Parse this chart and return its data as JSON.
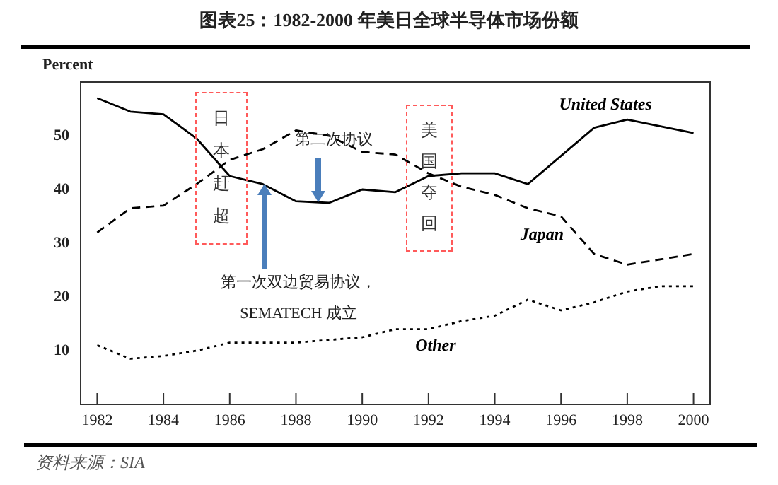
{
  "chart_data": {
    "type": "line",
    "title": "图表25：1982-2000 年美日全球半导体市场份额",
    "ylabel": "Percent",
    "series": [
      {
        "name": "United States",
        "color": "#000000",
        "line_style": "solid",
        "x": [
          1982,
          1983,
          1984,
          1985,
          1986,
          1987,
          1988,
          1989,
          1990,
          1991,
          1992,
          1993,
          1994,
          1995,
          1997,
          1998,
          2000
        ],
        "values": [
          57,
          54.5,
          54,
          49.5,
          42.5,
          41,
          37.8,
          37.5,
          40,
          39.5,
          42.5,
          43,
          43,
          41,
          51.5,
          53,
          50.5
        ]
      },
      {
        "name": "Japan",
        "color": "#000000",
        "line_style": "dashed",
        "x": [
          1982,
          1983,
          1984,
          1985,
          1986,
          1987,
          1988,
          1989,
          1990,
          1991,
          1992,
          1993,
          1994,
          1995,
          1996,
          1997,
          1998,
          2000
        ],
        "values": [
          32,
          36.5,
          37,
          41,
          45.5,
          47.5,
          51,
          50,
          47,
          46.5,
          43,
          40.5,
          39,
          36.5,
          35,
          28,
          26,
          28
        ]
      },
      {
        "name": "Other",
        "color": "#000000",
        "line_style": "dotted",
        "x": [
          1982,
          1983,
          1984,
          1985,
          1986,
          1987,
          1988,
          1989,
          1990,
          1991,
          1992,
          1993,
          1994,
          1995,
          1996,
          1997,
          1998,
          1999,
          2000
        ],
        "values": [
          11,
          8.5,
          9,
          10,
          11.5,
          11.5,
          11.5,
          12,
          12.5,
          14,
          14,
          15.5,
          16.5,
          19.5,
          17.5,
          19,
          21,
          22,
          22
        ]
      }
    ],
    "xlim": [
      1981.5,
      2000.5
    ],
    "xticks": [
      1982,
      1984,
      1986,
      1988,
      1990,
      1992,
      1994,
      1996,
      1998,
      2000
    ],
    "ylim": [
      0,
      60
    ],
    "yticks": [
      10,
      20,
      30,
      40,
      50
    ],
    "annotations": [
      "第二次协议",
      "第一次双边贸易协议，\nSEMATECH 成立",
      "日本赶超",
      "美国夺回",
      "资料来源：SIA"
    ],
    "grid": false,
    "legend": false,
    "marker": "none"
  }
}
